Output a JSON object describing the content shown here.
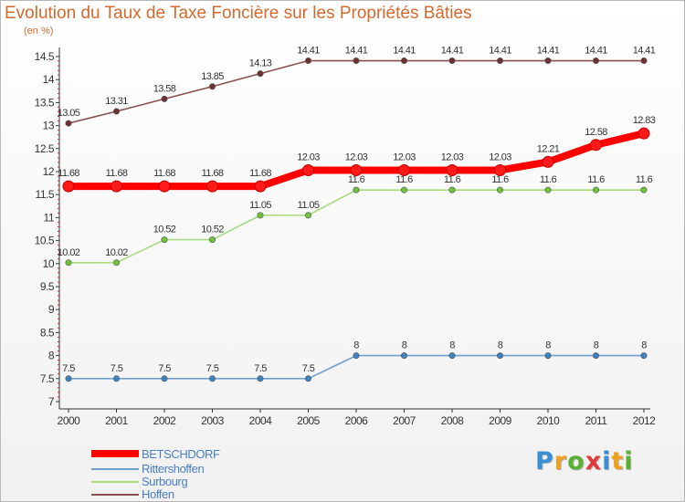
{
  "header": {
    "title": "Evolution du Taux de Taxe Foncière sur les Propriétés Bâties",
    "unit": "(en %)"
  },
  "logo": {
    "text": "Proxiti",
    "letters": [
      "P",
      "r",
      "o",
      "x",
      "i",
      "t",
      "i"
    ]
  },
  "colors": {
    "title": "#d4692e",
    "legend_text": "#4a7fc1",
    "axis": "#333333",
    "tick_red": "#e02020"
  },
  "chart_data": {
    "type": "line",
    "title": "Evolution du Taux de Taxe Foncière sur les Propriétés Bâties",
    "ylabel": "(en %)",
    "xlabel": "",
    "x": [
      "2000",
      "2001",
      "2002",
      "2003",
      "2004",
      "2005",
      "2006",
      "2007",
      "2008",
      "2009",
      "2010",
      "2011",
      "2012"
    ],
    "ylim": [
      7,
      14.5
    ],
    "yticks": [
      7,
      7.5,
      8,
      8.5,
      9,
      9.5,
      10,
      10.5,
      11,
      11.5,
      12,
      12.5,
      13,
      13.5,
      14,
      14.5
    ],
    "ytick_labels": [
      "7",
      "7.5",
      "8",
      "8.5",
      "9",
      "9.5",
      "10",
      "10.5",
      "11",
      "11.5",
      "12",
      "12.5",
      "13",
      "13.5",
      "14",
      "14.5"
    ],
    "legend_position": "bottom-left",
    "series": [
      {
        "name": "BETSCHDORF",
        "color": "#ff0000",
        "marker_color": "#ff1a1a",
        "thick": true,
        "values": [
          11.68,
          11.68,
          11.68,
          11.68,
          11.68,
          12.03,
          12.03,
          12.03,
          12.03,
          12.03,
          12.21,
          12.58,
          12.83
        ],
        "labels": [
          "11.68",
          "11.68",
          "11.68",
          "11.68",
          "11.68",
          "12.03",
          "12.03",
          "12.03",
          "12.03",
          "12.03",
          "12.21",
          "12.58",
          "12.83"
        ]
      },
      {
        "name": "Rittershoffen",
        "color": "#6fa0cc",
        "marker_color": "#3f82c2",
        "thick": false,
        "values": [
          7.5,
          7.5,
          7.5,
          7.5,
          7.5,
          7.5,
          8,
          8,
          8,
          8,
          8,
          8,
          8
        ],
        "labels": [
          "7.5",
          "7.5",
          "7.5",
          "7.5",
          "7.5",
          "7.5",
          "8",
          "8",
          "8",
          "8",
          "8",
          "8",
          "8"
        ]
      },
      {
        "name": "Surbourg",
        "color": "#a6dc7c",
        "marker_color": "#70c23a",
        "thick": false,
        "values": [
          10.02,
          10.02,
          10.52,
          10.52,
          11.05,
          11.05,
          11.6,
          11.6,
          11.6,
          11.6,
          11.6,
          11.6,
          11.6
        ],
        "labels": [
          "10.02",
          "10.02",
          "10.52",
          "10.52",
          "11.05",
          "11.05",
          "11.6",
          "11.6",
          "11.6",
          "11.6",
          "11.6",
          "11.6",
          "11.6"
        ]
      },
      {
        "name": "Hoffen",
        "color": "#8a5050",
        "marker_color": "#6e3030",
        "thick": false,
        "values": [
          13.05,
          13.31,
          13.58,
          13.85,
          14.13,
          14.41,
          14.41,
          14.41,
          14.41,
          14.41,
          14.41,
          14.41,
          14.41
        ],
        "labels": [
          "13.05",
          "13.31",
          "13.58",
          "13.85",
          "14.13",
          "14.41",
          "14.41",
          "14.41",
          "14.41",
          "14.41",
          "14.41",
          "14.41",
          "14.41"
        ]
      }
    ]
  }
}
